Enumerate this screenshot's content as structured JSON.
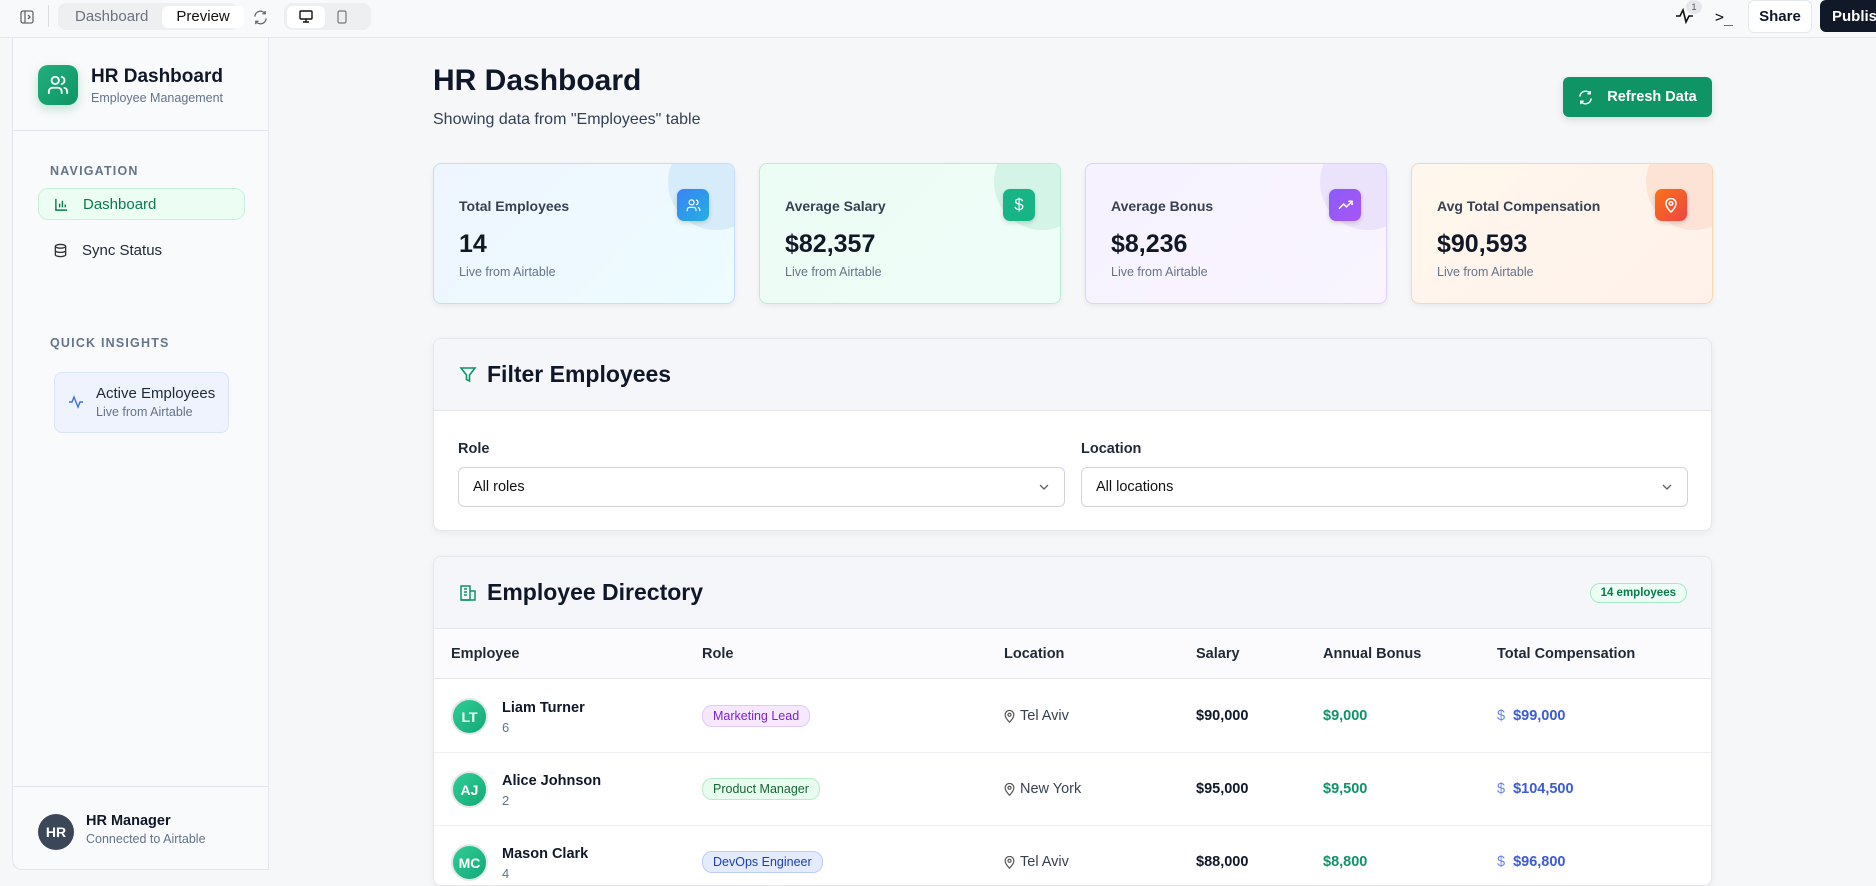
{
  "topbar": {
    "tabs": [
      "Dashboard",
      "Preview"
    ],
    "active_tab": "Preview",
    "activity_count": "1",
    "share": "Share",
    "publish": "Publish"
  },
  "sidebar": {
    "title": "HR Dashboard",
    "subtitle": "Employee Management",
    "nav_heading": "NAVIGATION",
    "nav": [
      {
        "label": "Dashboard",
        "active": true
      },
      {
        "label": "Sync Status",
        "active": false
      }
    ],
    "insights_heading": "QUICK INSIGHTS",
    "insight": {
      "title": "Active Employees",
      "subtitle": "Live from Airtable"
    },
    "user": {
      "initials": "HR",
      "name": "HR Manager",
      "status": "Connected to Airtable"
    }
  },
  "header": {
    "title": "HR Dashboard",
    "subtitle": "Showing data from \"Employees\" table",
    "refresh": "Refresh Data"
  },
  "stats": [
    {
      "label": "Total Employees",
      "value": "14",
      "note": "Live from Airtable",
      "color": "#3b82f6"
    },
    {
      "label": "Average Salary",
      "value": "$82,357",
      "note": "Live from Airtable",
      "color": "#10b981"
    },
    {
      "label": "Average Bonus",
      "value": "$8,236",
      "note": "Live from Airtable",
      "color": "#8b5cf6"
    },
    {
      "label": "Avg Total Compensation",
      "value": "$90,593",
      "note": "Live from Airtable",
      "color": "#f97316"
    }
  ],
  "filter": {
    "title": "Filter Employees",
    "role_label": "Role",
    "role_value": "All roles",
    "location_label": "Location",
    "location_value": "All locations"
  },
  "directory": {
    "title": "Employee Directory",
    "count": "14 employees",
    "columns": [
      "Employee",
      "Role",
      "Location",
      "Salary",
      "Annual Bonus",
      "Total Compensation"
    ],
    "rows": [
      {
        "initials": "LT",
        "name": "Liam Turner",
        "id": "6",
        "role": "Marketing Lead",
        "location": "Tel Aviv",
        "salary": "$90,000",
        "bonus": "$9,000",
        "total": "$99,000"
      },
      {
        "initials": "AJ",
        "name": "Alice Johnson",
        "id": "2",
        "role": "Product Manager",
        "location": "New York",
        "salary": "$95,000",
        "bonus": "$9,500",
        "total": "$104,500"
      },
      {
        "initials": "MC",
        "name": "Mason Clark",
        "id": "4",
        "role": "DevOps Engineer",
        "location": "Tel Aviv",
        "salary": "$88,000",
        "bonus": "$8,800",
        "total": "$96,800"
      }
    ]
  }
}
